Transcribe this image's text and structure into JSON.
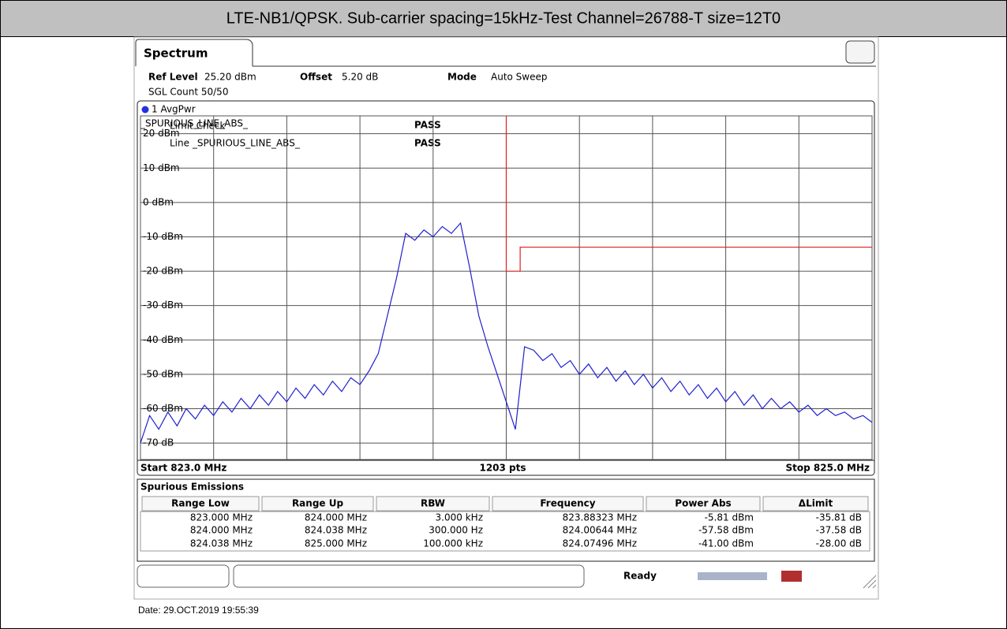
{
  "header": {
    "title": "LTE-NB1/QPSK. Sub-carrier spacing=15kHz-Test Channel=26788-T size=12T0"
  },
  "tab": "Spectrum",
  "settings": {
    "ref_level_label": "Ref Level",
    "ref_level": "25.20 dBm",
    "offset_label": "Offset",
    "offset": "5.20 dB",
    "mode_label": "Mode",
    "mode": "Auto Sweep",
    "count": "SGL Count 50/50"
  },
  "chart_data": {
    "type": "line",
    "xlim": [
      823.0,
      825.0
    ],
    "xticks": [
      823.0,
      823.2,
      823.4,
      823.6,
      823.8,
      824.0,
      824.2,
      824.4,
      824.6,
      824.8,
      825.0
    ],
    "ylim": [
      -74.8,
      25.2
    ],
    "yticks": [
      {
        "value": 20,
        "label": "20 dBm"
      },
      {
        "value": 10,
        "label": "10 dBm"
      },
      {
        "value": 0,
        "label": "0 dBm"
      },
      {
        "value": -10,
        "label": "-10 dBm"
      },
      {
        "value": -20,
        "label": "-20 dBm"
      },
      {
        "value": -30,
        "label": "-30 dBm"
      },
      {
        "value": -40,
        "label": "-40 dBm"
      },
      {
        "value": -50,
        "label": "-50 dBm"
      },
      {
        "value": -60,
        "label": "-60 dBm"
      },
      {
        "value": -70,
        "label": "-70 dB"
      }
    ],
    "grid": true,
    "series": [
      {
        "name": "1 AvgPwr",
        "color": "#1f1fd0",
        "x": [
          823.0,
          823.025,
          823.05,
          823.075,
          823.1,
          823.125,
          823.15,
          823.175,
          823.2,
          823.225,
          823.25,
          823.275,
          823.3,
          823.325,
          823.35,
          823.375,
          823.4,
          823.425,
          823.45,
          823.475,
          823.5,
          823.525,
          823.55,
          823.575,
          823.6,
          823.625,
          823.65,
          823.675,
          823.7,
          823.725,
          823.75,
          823.775,
          823.8,
          823.825,
          823.85,
          823.875,
          823.9,
          823.925,
          823.95,
          823.975,
          824.0,
          824.025,
          824.05,
          824.075,
          824.1,
          824.125,
          824.15,
          824.175,
          824.2,
          824.225,
          824.25,
          824.275,
          824.3,
          824.325,
          824.35,
          824.375,
          824.4,
          824.425,
          824.45,
          824.475,
          824.5,
          824.525,
          824.55,
          824.575,
          824.6,
          824.625,
          824.65,
          824.675,
          824.7,
          824.725,
          824.75,
          824.775,
          824.8,
          824.825,
          824.85,
          824.875,
          824.9,
          824.925,
          824.95,
          824.975,
          825.0
        ],
        "values": [
          -70,
          -62,
          -66,
          -61,
          -65,
          -60,
          -63,
          -59,
          -62,
          -58,
          -61,
          -57,
          -60,
          -56,
          -59,
          -55,
          -58,
          -54,
          -57,
          -53,
          -56,
          -52,
          -55,
          -51,
          -53,
          -49,
          -44,
          -33,
          -22,
          -9,
          -11,
          -8,
          -10,
          -7,
          -9,
          -6,
          -19,
          -33,
          -42,
          -50,
          -58,
          -66,
          -42,
          -43,
          -46,
          -44,
          -48,
          -46,
          -50,
          -47,
          -51,
          -48,
          -52,
          -49,
          -53,
          -50,
          -54,
          -51,
          -55,
          -52,
          -56,
          -53,
          -57,
          -54,
          -58,
          -55,
          -59,
          -56,
          -60,
          -57,
          -60,
          -58,
          -61,
          -59,
          -62,
          -60,
          -62,
          -61,
          -63,
          -62,
          -64
        ]
      },
      {
        "name": "_SPURIOUS_LINE_ABS_",
        "color": "#e02020",
        "x": [
          824.0,
          824.0,
          824.038,
          824.038,
          825.0
        ],
        "values": [
          25.2,
          -20,
          -20,
          -13,
          -13
        ]
      }
    ],
    "limit_check": {
      "title": "Limit Check",
      "result": "PASS",
      "line_label": "Line _SPURIOUS_LINE_ABS_",
      "line_result": "PASS"
    },
    "start_label": "Start 823.0 MHz",
    "points_label": "1203 pts",
    "stop_label": "Stop 825.0 MHz"
  },
  "table": {
    "title": "Spurious Emissions",
    "columns": [
      "Range Low",
      "Range Up",
      "RBW",
      "Frequency",
      "Power Abs",
      "ΔLimit"
    ],
    "rows": [
      [
        "823.000 MHz",
        "824.000 MHz",
        "3.000 kHz",
        "823.88323 MHz",
        "-5.81 dBm",
        "-35.81 dB"
      ],
      [
        "824.000 MHz",
        "824.038 MHz",
        "300.000 Hz",
        "824.00644 MHz",
        "-57.58 dBm",
        "-37.58 dB"
      ],
      [
        "824.038 MHz",
        "825.000 MHz",
        "100.000 kHz",
        "824.07496 MHz",
        "-41.00 dBm",
        "-28.00 dB"
      ]
    ]
  },
  "status": "Ready",
  "footer": "Date: 29.OCT.2019 19:55:39"
}
